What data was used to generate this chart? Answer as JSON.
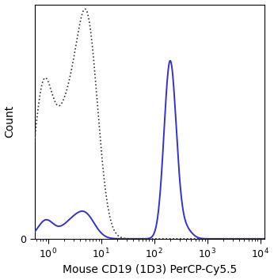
{
  "title": "",
  "xlabel": "Mouse CD19 (1D3) PerCP-Cy5.5",
  "ylabel": "Count",
  "xlim": [
    0.55,
    12000
  ],
  "ylim_min": 0,
  "solid_color": "#3333cc",
  "dashed_color": "#333333",
  "solid_linewidth": 1.4,
  "dashed_linewidth": 1.2,
  "background_color": "#ffffff",
  "xlabel_fontsize": 10,
  "ylabel_fontsize": 10,
  "tick_fontsize": 9
}
